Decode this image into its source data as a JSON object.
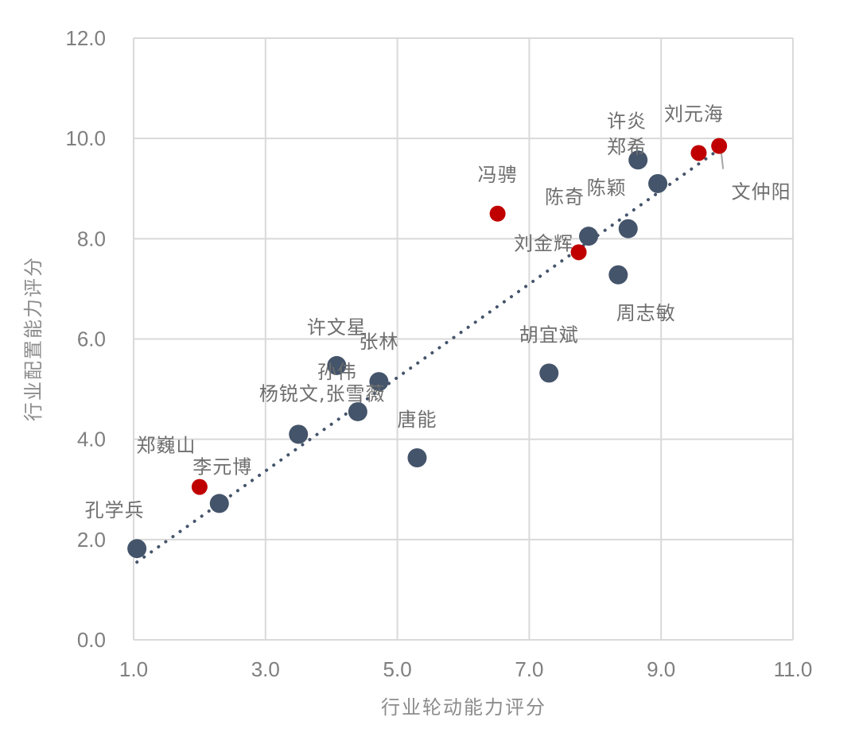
{
  "chart_data": {
    "type": "scatter",
    "title": "",
    "xlabel": "行业轮动能力评分",
    "ylabel": "行业配置能力评分",
    "xlim": [
      1.0,
      11.0
    ],
    "ylim": [
      0.0,
      12.0
    ],
    "x_ticks": [
      "1.0",
      "3.0",
      "5.0",
      "7.0",
      "9.0",
      "11.0"
    ],
    "y_ticks": [
      "0.0",
      "2.0",
      "4.0",
      "6.0",
      "8.0",
      "10.0",
      "12.0"
    ],
    "grid": true,
    "trendline": {
      "style": "dotted",
      "color": "#44546A",
      "from": [
        1.05,
        1.55
      ],
      "to": [
        9.9,
        9.8
      ]
    },
    "colors": {
      "blue": "#44546A",
      "red": "#C00000"
    },
    "points": [
      {
        "name": "孔学兵",
        "x": 1.05,
        "y": 1.82,
        "color": "blue"
      },
      {
        "name": "郑巍山",
        "x": 2.0,
        "y": 3.05,
        "color": "red"
      },
      {
        "name": "李元博",
        "x": 2.3,
        "y": 2.72,
        "color": "blue"
      },
      {
        "name": "杨锐文,张雪薇",
        "x": 3.5,
        "y": 4.1,
        "color": "blue"
      },
      {
        "name": "许文星",
        "x": 4.08,
        "y": 5.47,
        "color": "blue"
      },
      {
        "name": "孙伟",
        "x": 4.4,
        "y": 4.55,
        "color": "blue"
      },
      {
        "name": "张林",
        "x": 4.72,
        "y": 5.15,
        "color": "blue"
      },
      {
        "name": "唐能",
        "x": 5.3,
        "y": 3.63,
        "color": "blue"
      },
      {
        "name": "冯骋",
        "x": 6.52,
        "y": 8.5,
        "color": "red"
      },
      {
        "name": "胡宜斌",
        "x": 7.3,
        "y": 5.32,
        "color": "blue"
      },
      {
        "name": "刘金辉",
        "x": 7.75,
        "y": 7.73,
        "color": "red"
      },
      {
        "name": "陈奇",
        "x": 7.9,
        "y": 8.05,
        "color": "blue"
      },
      {
        "name": "周志敏",
        "x": 8.35,
        "y": 7.28,
        "color": "blue"
      },
      {
        "name": "陈颖",
        "x": 8.5,
        "y": 8.2,
        "color": "blue"
      },
      {
        "name": "许炎",
        "x": 8.65,
        "y": 9.57,
        "color": "blue"
      },
      {
        "name": "郑希",
        "x": 8.95,
        "y": 9.1,
        "color": "blue"
      },
      {
        "name": "刘元海",
        "x": 9.57,
        "y": 9.71,
        "color": "red"
      },
      {
        "name": "文仲阳",
        "x": 9.88,
        "y": 9.85,
        "color": "red"
      }
    ]
  }
}
